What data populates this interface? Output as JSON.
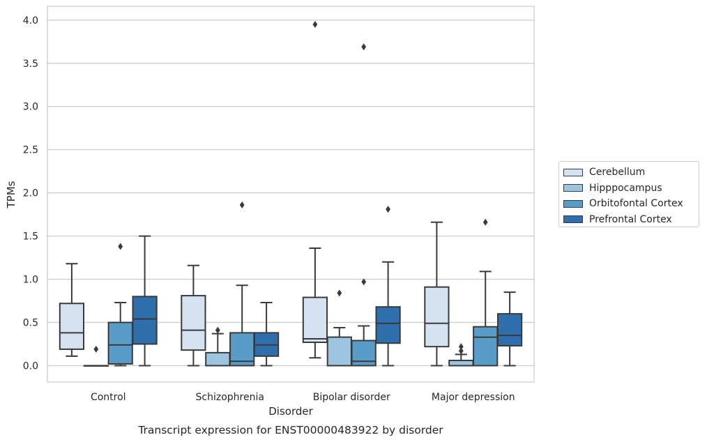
{
  "chart_data": {
    "type": "box",
    "title": "Transcript expression for ENST00000483922 by disorder",
    "xlabel": "Disorder",
    "ylabel": "TPMs",
    "ylim": [
      -0.19,
      4.16
    ],
    "yticks": [
      "0.0",
      "0.5",
      "1.0",
      "1.5",
      "2.0",
      "2.5",
      "3.0",
      "3.5",
      "4.0"
    ],
    "grid": "horizontal",
    "legend_placement": "right",
    "categories": [
      "Control",
      "Schizophrenia",
      "Bipolar disorder",
      "Major depression"
    ],
    "series": [
      {
        "name": "Cerebellum",
        "color": "#d4e2f1",
        "boxes": [
          {
            "whislo": 0.11,
            "q1": 0.19,
            "med": 0.38,
            "q3": 0.72,
            "whishi": 1.18,
            "fliers": []
          },
          {
            "whislo": 0.0,
            "q1": 0.18,
            "med": 0.41,
            "q3": 0.81,
            "whishi": 1.16,
            "fliers": []
          },
          {
            "whislo": 0.09,
            "q1": 0.27,
            "med": 0.31,
            "q3": 0.79,
            "whishi": 1.36,
            "fliers": [
              3.95
            ]
          },
          {
            "whislo": 0.0,
            "q1": 0.22,
            "med": 0.49,
            "q3": 0.91,
            "whishi": 1.66,
            "fliers": []
          }
        ]
      },
      {
        "name": "Hipppocampus",
        "color": "#9dc5df",
        "boxes": [
          {
            "whislo": 0.0,
            "q1": 0.0,
            "med": 0.0,
            "q3": 0.0,
            "whishi": 0.0,
            "fliers": [
              0.19
            ]
          },
          {
            "whislo": 0.0,
            "q1": 0.0,
            "med": 0.0,
            "q3": 0.15,
            "whishi": 0.37,
            "fliers": [
              0.41
            ]
          },
          {
            "whislo": 0.0,
            "q1": 0.0,
            "med": 0.0,
            "q3": 0.33,
            "whishi": 0.44,
            "fliers": [
              0.84
            ]
          },
          {
            "whislo": 0.0,
            "q1": 0.0,
            "med": 0.0,
            "q3": 0.06,
            "whishi": 0.13,
            "fliers": [
              0.17,
              0.22
            ]
          }
        ]
      },
      {
        "name": "Orbitofontal Cortex",
        "color": "#5a9cc8",
        "boxes": [
          {
            "whislo": 0.0,
            "q1": 0.02,
            "med": 0.24,
            "q3": 0.5,
            "whishi": 0.73,
            "fliers": [
              1.38
            ]
          },
          {
            "whislo": 0.0,
            "q1": 0.0,
            "med": 0.05,
            "q3": 0.38,
            "whishi": 0.93,
            "fliers": [
              1.86
            ]
          },
          {
            "whislo": 0.0,
            "q1": 0.0,
            "med": 0.05,
            "q3": 0.29,
            "whishi": 0.46,
            "fliers": [
              0.97,
              3.69
            ]
          },
          {
            "whislo": 0.0,
            "q1": 0.0,
            "med": 0.33,
            "q3": 0.45,
            "whishi": 1.09,
            "fliers": [
              1.66
            ]
          }
        ]
      },
      {
        "name": "Prefrontal Cortex",
        "color": "#2f6fad",
        "boxes": [
          {
            "whislo": 0.0,
            "q1": 0.25,
            "med": 0.54,
            "q3": 0.8,
            "whishi": 1.5,
            "fliers": []
          },
          {
            "whislo": 0.0,
            "q1": 0.11,
            "med": 0.24,
            "q3": 0.38,
            "whishi": 0.73,
            "fliers": []
          },
          {
            "whislo": 0.0,
            "q1": 0.26,
            "med": 0.49,
            "q3": 0.68,
            "whishi": 1.2,
            "fliers": [
              1.81
            ]
          },
          {
            "whislo": 0.0,
            "q1": 0.23,
            "med": 0.35,
            "q3": 0.6,
            "whishi": 0.85,
            "fliers": []
          }
        ]
      }
    ]
  }
}
